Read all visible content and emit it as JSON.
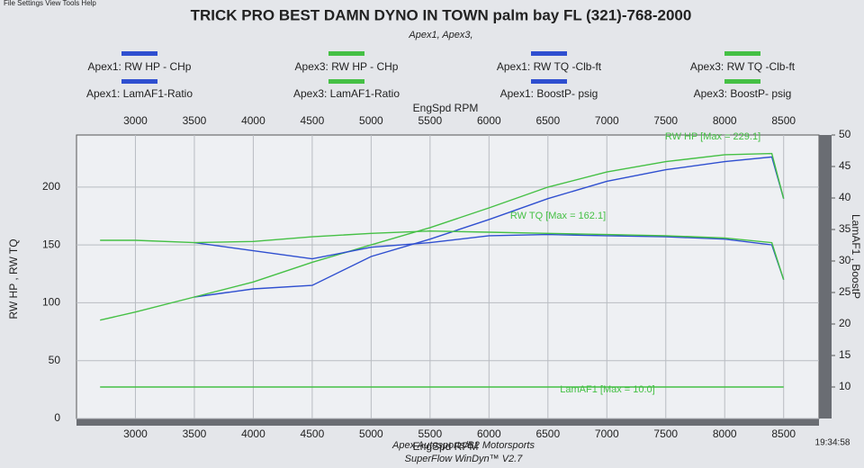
{
  "chart_data": {
    "type": "line",
    "title": "TRICK PRO BEST DAMN DYNO IN TOWN palm bay FL (321)-768-2000",
    "subtitle": "Apex1, Apex3,",
    "x_label": "EngSpd  RPM",
    "y_label": "RW HP , RW TQ",
    "y2_label": "LamAF1 , BoostP",
    "x": [
      2700,
      3000,
      3500,
      4000,
      4500,
      5000,
      5500,
      6000,
      6500,
      7000,
      7500,
      8000,
      8400,
      8500
    ],
    "xlim": [
      2500,
      8800
    ],
    "xticks": [
      3000,
      3500,
      4000,
      4500,
      5000,
      5500,
      6000,
      6500,
      7000,
      7500,
      8000,
      8500
    ],
    "ylim": [
      0,
      245
    ],
    "yticks": [
      0,
      50,
      100,
      150,
      200
    ],
    "y2lim": [
      5,
      50
    ],
    "y2ticks": [
      10,
      15,
      20,
      25,
      30,
      35,
      40,
      45,
      50
    ],
    "grid": true,
    "series": [
      {
        "name": "Apex1: RW HP - CHp",
        "color": "#2f4fd0",
        "values": [
          null,
          null,
          105,
          112,
          115,
          140,
          155,
          172,
          190,
          205,
          215,
          222,
          226,
          190
        ]
      },
      {
        "name": "Apex3: RW HP - CHp",
        "color": "#45c045",
        "values": [
          85,
          92,
          105,
          118,
          135,
          150,
          165,
          182,
          200,
          213,
          222,
          228,
          229,
          190
        ]
      },
      {
        "name": "Apex1: RW TQ -Clb-ft",
        "color": "#2f4fd0",
        "values": [
          null,
          null,
          152,
          145,
          138,
          148,
          152,
          158,
          159,
          158,
          157,
          155,
          150,
          120
        ]
      },
      {
        "name": "Apex3: RW TQ -Clb-ft",
        "color": "#45c045",
        "values": [
          154,
          154,
          152,
          153,
          157,
          160,
          162,
          161,
          160,
          159,
          158,
          156,
          152,
          120
        ]
      },
      {
        "name": "Apex1: LamAF1-Ratio",
        "color": "#2f4fd0",
        "axis": "y2",
        "values": [
          null,
          null,
          null,
          null,
          null,
          null,
          null,
          null,
          null,
          null,
          null,
          null,
          null,
          null
        ]
      },
      {
        "name": "Apex3: LamAF1-Ratio",
        "color": "#45c045",
        "axis": "y2",
        "values": [
          10,
          10,
          10,
          10,
          10,
          10,
          10,
          10,
          10,
          10,
          10,
          10,
          10,
          10
        ]
      },
      {
        "name": "Apex1: BoostP- psig",
        "color": "#2f4fd0",
        "axis": "y2",
        "values": [
          null,
          null,
          null,
          null,
          null,
          null,
          null,
          null,
          null,
          null,
          null,
          null,
          null,
          null
        ]
      },
      {
        "name": "Apex3: BoostP- psig",
        "color": "#45c045",
        "axis": "y2",
        "values": [
          null,
          null,
          null,
          null,
          null,
          null,
          null,
          null,
          null,
          null,
          null,
          null,
          null,
          null
        ]
      }
    ],
    "annotations": [
      "RW HP  [Max = 229.1]",
      "RW TQ  [Max = 162.1]",
      "LamAF1 [Max = 10.0]"
    ],
    "footer": [
      "Apex Autosports/B2 Motorsports",
      "SuperFlow WinDyn™ V2.7"
    ],
    "time": "19:34:58"
  }
}
